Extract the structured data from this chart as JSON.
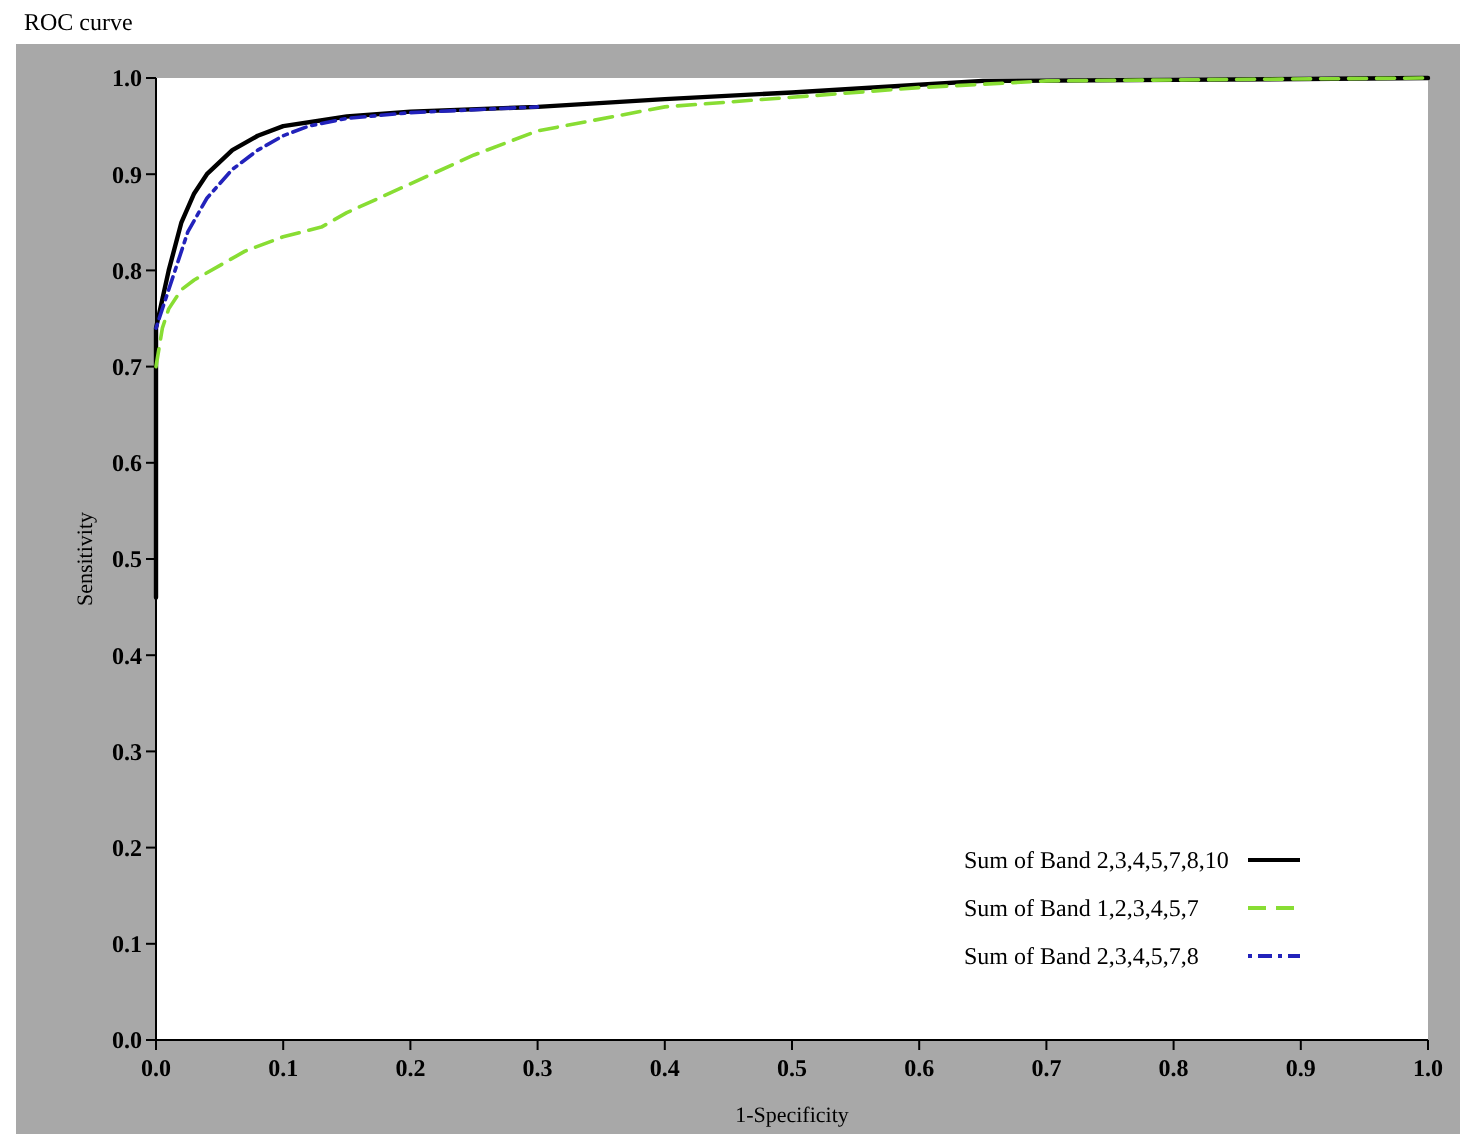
{
  "chart_data": {
    "type": "line",
    "title": "ROC curve",
    "xlabel": "1-Specificity",
    "ylabel": "Sensitivity",
    "xlim": [
      0,
      1
    ],
    "ylim": [
      0,
      1
    ],
    "xticks": [
      {
        "value": 0,
        "label": "0.0"
      },
      0.1,
      0.2,
      0.3,
      0.4,
      0.5,
      0.6,
      0.7,
      0.8,
      0.9,
      {
        "value": 1,
        "label": "1.0"
      }
    ],
    "yticks": [
      {
        "value": 0,
        "label": "0.0"
      },
      0.1,
      0.2,
      0.3,
      0.4,
      0.5,
      0.6,
      0.7,
      0.8,
      0.9,
      {
        "value": 1,
        "label": "1.0"
      }
    ],
    "grid": false,
    "legend": "bottom right",
    "series": [
      {
        "name": "Sum of Band 2,3,4,5,7,8,10",
        "color": "#000000",
        "line_style": "solid",
        "x": [
          0,
          0,
          0.005,
          0.01,
          0.02,
          0.03,
          0.04,
          0.06,
          0.08,
          0.1,
          0.15,
          0.2,
          0.3,
          0.4,
          0.5,
          0.6,
          0.65,
          0.8,
          1
        ],
        "values": [
          0.46,
          0.74,
          0.77,
          0.8,
          0.85,
          0.88,
          0.9,
          0.925,
          0.94,
          0.95,
          0.96,
          0.965,
          0.97,
          0.978,
          0.985,
          0.993,
          0.997,
          0.998,
          1
        ]
      },
      {
        "name": "Sum of Band 1,2,3,4,5,7",
        "color": "#88dd33",
        "line_style": "dashed",
        "x": [
          0,
          0.005,
          0.01,
          0.02,
          0.03,
          0.05,
          0.07,
          0.1,
          0.13,
          0.15,
          0.2,
          0.25,
          0.3,
          0.4,
          0.5,
          0.6,
          0.7,
          1
        ],
        "values": [
          0.7,
          0.74,
          0.76,
          0.78,
          0.79,
          0.805,
          0.82,
          0.835,
          0.845,
          0.86,
          0.89,
          0.92,
          0.945,
          0.97,
          0.98,
          0.99,
          0.997,
          1
        ]
      },
      {
        "name": "Sum of Band 2,3,4,5,7,8",
        "color": "#2222bb",
        "line_style": "dotted",
        "x": [
          0,
          0.005,
          0.01,
          0.015,
          0.025,
          0.04,
          0.06,
          0.08,
          0.1,
          0.12,
          0.15,
          0.2,
          0.3
        ],
        "values": [
          0.74,
          0.76,
          0.78,
          0.8,
          0.84,
          0.875,
          0.905,
          0.925,
          0.94,
          0.95,
          0.958,
          0.964,
          0.97
        ]
      }
    ]
  }
}
